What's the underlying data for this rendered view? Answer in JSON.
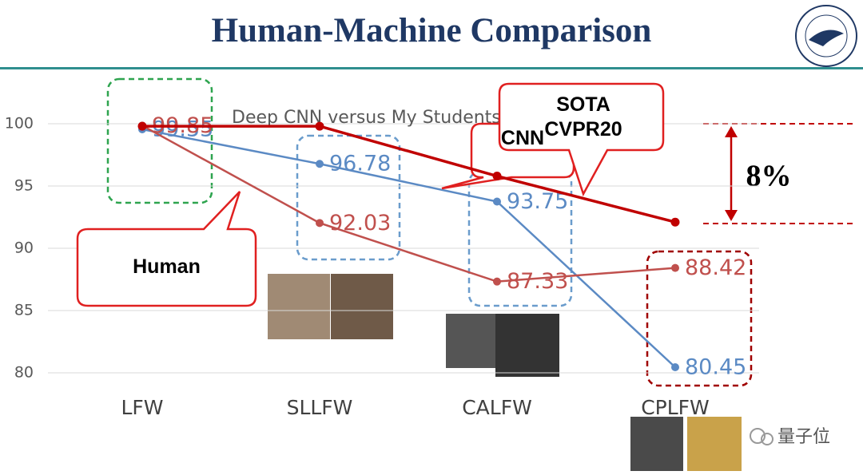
{
  "slide_title": "Human-Machine Comparison",
  "chart_data": {
    "type": "line",
    "title": "Deep CNN versus My Students",
    "categories": [
      "LFW",
      "SLLFW",
      "CALFW",
      "CPLFW"
    ],
    "series": [
      {
        "name": "CNN",
        "color": "#5b8ac4",
        "values": [
          99.55,
          96.78,
          93.75,
          80.45
        ],
        "data_labels": true
      },
      {
        "name": "Human",
        "color": "#c0504d",
        "values": [
          99.85,
          92.03,
          87.33,
          88.42
        ],
        "data_labels": true
      },
      {
        "name": "SOTA CVPR20",
        "color": "#c00000",
        "values": [
          99.8,
          99.8,
          95.8,
          92.1
        ],
        "data_labels": false
      }
    ],
    "ylim": [
      80,
      100
    ],
    "yticks": [
      80,
      85,
      90,
      95,
      100
    ],
    "grid": true
  },
  "gap_annotation": "8%",
  "watermark": "量子位"
}
